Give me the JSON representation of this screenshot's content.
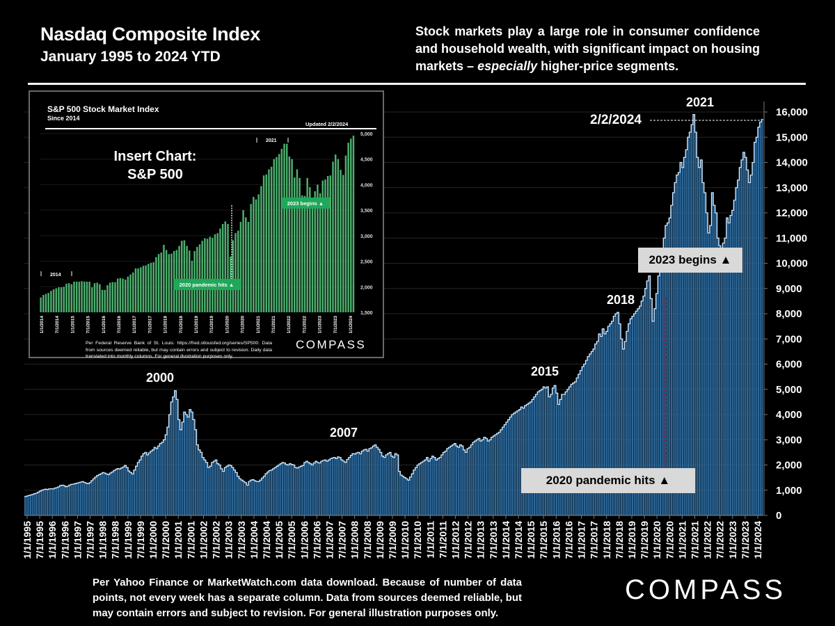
{
  "header": {
    "title": "Nasdaq Composite Index",
    "subtitle": "January 1995 to 2024 YTD",
    "blurb_pre": "Stock markets play a large role in consumer confidence and household wealth, with significant impact on housing markets – ",
    "blurb_em": "especially",
    "blurb_post": " higher-price segments."
  },
  "footer": {
    "note": "Per Yahoo Finance or MarketWatch.com data download. Because of number of data points, not every week has a separate column. Data from sources deemed reliable, but may contain errors and subject to revision. For general illustration purposes only.",
    "logo": "COMPASS"
  },
  "annotations": {
    "y2000": "2000",
    "y2007": "2007",
    "y2015": "2015",
    "y2018": "2018",
    "y2021": "2021",
    "latest_date": "2/2/2024",
    "pandemic": "2020 pandemic hits ▲",
    "begins2023": "2023 begins ▲"
  },
  "colors": {
    "bar": "#2e6b9e",
    "bar_outline": "#cfe8ff",
    "background": "#000000",
    "callout_bg": "#d9d9d9",
    "inset_bar": "#2e8b4e",
    "inset_callout": "#1fa85a",
    "pandemic_line": "#8b1a2a"
  },
  "inset": {
    "title": "S&P 500 Stock Market Index",
    "subtitle": "Since 2014",
    "updated": "Updated 2/2/2024",
    "insert_label_1": "Insert Chart:",
    "insert_label_2": "S&P 500",
    "label_2014": "2014",
    "label_2021": "2021",
    "pandemic": "2020 pandemic hits ▲",
    "begins2023": "2023 begins ▲",
    "note": "Per Federal Reserve Bank of St. Louis: https://fred.stlouisfed.org/series/SP500. Data from sources deemed reliable, but may contain errors and subject to revision. Daily data translated into monthly columns. For general illustration purposes only.",
    "logo": "COMPASS"
  },
  "chart_data": [
    {
      "type": "bar",
      "title": "Nasdaq Composite Index",
      "subtitle": "January 1995 to 2024 YTD",
      "xlabel": "",
      "ylabel": "",
      "ylim": [
        0,
        16000
      ],
      "yticks": [
        "0",
        "1,000",
        "2,000",
        "3,000",
        "4,000",
        "5,000",
        "6,000",
        "7,000",
        "8,000",
        "9,000",
        "10,000",
        "11,000",
        "12,000",
        "13,000",
        "14,000",
        "15,000",
        "16,000"
      ],
      "ytick_values": [
        0,
        1000,
        2000,
        3000,
        4000,
        5000,
        6000,
        7000,
        8000,
        9000,
        10000,
        11000,
        12000,
        13000,
        14000,
        15000,
        16000
      ],
      "xticks": [
        "1/1/1995",
        "7/1/1995",
        "1/1/1996",
        "7/1/1996",
        "1/1/1997",
        "7/1/1997",
        "1/1/1998",
        "7/1/1998",
        "1/1/1999",
        "7/1/1999",
        "1/1/2000",
        "7/1/2000",
        "1/1/2001",
        "7/1/2001",
        "1/1/2002",
        "7/1/2002",
        "1/1/2003",
        "7/1/2003",
        "1/1/2004",
        "7/1/2004",
        "1/1/2005",
        "7/1/2005",
        "1/1/2006",
        "7/1/2006",
        "1/1/2007",
        "7/1/2007",
        "1/1/2008",
        "7/1/2008",
        "1/1/2009",
        "7/1/2009",
        "1/1/2010",
        "7/1/2010",
        "1/1/2011",
        "7/1/2011",
        "1/1/2012",
        "7/1/2012",
        "1/1/2013",
        "7/1/2013",
        "1/1/2014",
        "7/1/2014",
        "1/1/2015",
        "7/1/2015",
        "1/1/2016",
        "7/1/2016",
        "1/1/2017",
        "7/1/2017",
        "1/1/2018",
        "7/1/2018",
        "1/1/2019",
        "7/1/2019",
        "1/1/2020",
        "7/1/2020",
        "1/1/2021",
        "7/1/2021",
        "1/1/2022",
        "7/1/2022",
        "1/1/2023",
        "7/1/2023",
        "1/1/2024"
      ],
      "grid": true,
      "frequency": "semi-monthly (approx.)",
      "x_start": "1/1/1995",
      "x_end": "2/2/2024",
      "values": [
        750,
        770,
        790,
        810,
        830,
        860,
        880,
        920,
        960,
        1000,
        1020,
        1040,
        1030,
        1050,
        1060,
        1050,
        1080,
        1100,
        1130,
        1180,
        1200,
        1180,
        1140,
        1160,
        1200,
        1230,
        1240,
        1260,
        1280,
        1300,
        1320,
        1340,
        1310,
        1280,
        1260,
        1300,
        1380,
        1450,
        1520,
        1580,
        1620,
        1650,
        1700,
        1680,
        1640,
        1620,
        1680,
        1720,
        1780,
        1820,
        1860,
        1840,
        1880,
        1920,
        1980,
        1900,
        1760,
        1700,
        1640,
        1800,
        1950,
        2100,
        2200,
        2350,
        2450,
        2500,
        2400,
        2480,
        2550,
        2600,
        2700,
        2650,
        2750,
        2850,
        2900,
        3000,
        3200,
        3500,
        4000,
        4500,
        4700,
        4950,
        4600,
        3800,
        3400,
        3700,
        4100,
        4000,
        3900,
        4200,
        4100,
        3800,
        3400,
        2800,
        2600,
        2500,
        2300,
        2200,
        2100,
        1900,
        1950,
        2100,
        2150,
        2200,
        2050,
        2000,
        1850,
        1750,
        1900,
        1950,
        2000,
        1980,
        1900,
        1800,
        1700,
        1550,
        1450,
        1400,
        1350,
        1300,
        1200,
        1350,
        1400,
        1420,
        1380,
        1350,
        1340,
        1400,
        1480,
        1550,
        1650,
        1720,
        1780,
        1800,
        1850,
        1900,
        1950,
        2000,
        2050,
        2100,
        2080,
        2020,
        2000,
        2050,
        2020,
        2000,
        1900,
        1880,
        1920,
        1950,
        1980,
        2100,
        2150,
        2100,
        2050,
        2000,
        2080,
        2150,
        2100,
        2080,
        2150,
        2180,
        2200,
        2150,
        2200,
        2250,
        2280,
        2300,
        2250,
        2320,
        2300,
        2200,
        2150,
        2100,
        2220,
        2300,
        2380,
        2450,
        2430,
        2480,
        2500,
        2440,
        2550,
        2600,
        2620,
        2550,
        2650,
        2680,
        2750,
        2800,
        2700,
        2620,
        2500,
        2350,
        2300,
        2400,
        2450,
        2500,
        2350,
        2300,
        2450,
        2400,
        1750,
        1600,
        1550,
        1500,
        1450,
        1400,
        1520,
        1650,
        1800,
        1900,
        2000,
        2050,
        2100,
        2150,
        2200,
        2300,
        2150,
        2250,
        2350,
        2300,
        2200,
        2250,
        2300,
        2400,
        2500,
        2550,
        2650,
        2700,
        2750,
        2800,
        2850,
        2750,
        2700,
        2800,
        2750,
        2600,
        2500,
        2650,
        2700,
        2800,
        2900,
        2950,
        3000,
        3050,
        2950,
        3000,
        3100,
        3050,
        2950,
        3000,
        3100,
        3150,
        3200,
        3250,
        3300,
        3400,
        3500,
        3600,
        3700,
        3800,
        3900,
        4000,
        4050,
        4100,
        4150,
        4200,
        4300,
        4250,
        4350,
        4400,
        4450,
        4500,
        4600,
        4700,
        4800,
        4900,
        4950,
        5000,
        5100,
        5050,
        5100,
        4700,
        4800,
        5050,
        5150,
        4850,
        4400,
        4600,
        4800,
        4800,
        4900,
        5000,
        5100,
        5200,
        5250,
        5300,
        5450,
        5600,
        5750,
        5900,
        6000,
        6150,
        6300,
        6400,
        6500,
        6600,
        6800,
        6900,
        7200,
        7100,
        7400,
        7200,
        7300,
        7500,
        7600,
        7700,
        7900,
        8000,
        8050,
        7600,
        7000,
        6600,
        6900,
        7300,
        7600,
        7800,
        7900,
        8000,
        8100,
        8200,
        8300,
        8500,
        8700,
        9000,
        9300,
        9500,
        8600,
        7700,
        8200,
        8800,
        9500,
        10000,
        10500,
        11000,
        11500,
        11600,
        11800,
        12300,
        12800,
        13200,
        13500,
        13600,
        14000,
        13800,
        14200,
        14500,
        15000,
        15200,
        15500,
        15900,
        15200,
        14200,
        13800,
        14100,
        13200,
        12800,
        12000,
        11200,
        11500,
        12800,
        12300,
        12000,
        11000,
        10700,
        10300,
        10800,
        11000,
        11800,
        11600,
        11900,
        12100,
        12500,
        13000,
        13300,
        13800,
        14100,
        14400,
        14200,
        13700,
        13200,
        13500,
        14000,
        14800,
        15000,
        15400,
        15600,
        15700
      ]
    },
    {
      "type": "bar",
      "title": "S&P 500 Stock Market Index",
      "subtitle": "Since 2014",
      "ylim": [
        1500,
        5000
      ],
      "yticks": [
        "1,500",
        "2,000",
        "2,500",
        "3,000",
        "3,500",
        "4,000",
        "4,500",
        "5,000"
      ],
      "ytick_values": [
        1500,
        2000,
        2500,
        3000,
        3500,
        4000,
        4500,
        5000
      ],
      "xticks": [
        "1/1/2014",
        "7/1/2014",
        "1/1/2015",
        "7/1/2015",
        "1/1/2016",
        "7/1/2016",
        "1/1/2017",
        "7/1/2017",
        "1/1/2018",
        "7/1/2018",
        "1/1/2019",
        "7/1/2019",
        "1/1/2020",
        "7/1/2020",
        "1/1/2021",
        "7/1/2021",
        "1/1/2022",
        "7/1/2022",
        "1/1/2023",
        "7/1/2023",
        "1/1/2024"
      ],
      "frequency": "monthly",
      "values": [
        1790,
        1840,
        1860,
        1880,
        1920,
        1950,
        1970,
        1990,
        1990,
        2000,
        2060,
        2070,
        2050,
        2100,
        2100,
        2100,
        2110,
        2100,
        2100,
        2100,
        1990,
        2070,
        2080,
        2050,
        1940,
        1940,
        2030,
        2080,
        2090,
        2090,
        2160,
        2170,
        2160,
        2140,
        2200,
        2240,
        2280,
        2360,
        2360,
        2380,
        2410,
        2420,
        2450,
        2470,
        2480,
        2580,
        2640,
        2670,
        2820,
        2720,
        2640,
        2650,
        2700,
        2720,
        2800,
        2900,
        2910,
        2800,
        2710,
        2510,
        2700,
        2780,
        2830,
        2900,
        2950,
        2940,
        2980,
        2960,
        3030,
        3050,
        3140,
        3230,
        3280,
        3230,
        2590,
        2910,
        3050,
        3100,
        3270,
        3500,
        3360,
        3270,
        3620,
        3760,
        3710,
        3810,
        3970,
        4180,
        4200,
        4300,
        4350,
        4500,
        4540,
        4600,
        4700,
        4800,
        4800,
        4550,
        4500,
        4140,
        4300,
        4130,
        3790,
        3780,
        4130,
        3950,
        3580,
        3870,
        4000,
        3830,
        4080,
        4100,
        4170,
        4180,
        4450,
        4590,
        4500,
        4290,
        4190,
        4570,
        4820,
        4900,
        4960
      ]
    }
  ]
}
